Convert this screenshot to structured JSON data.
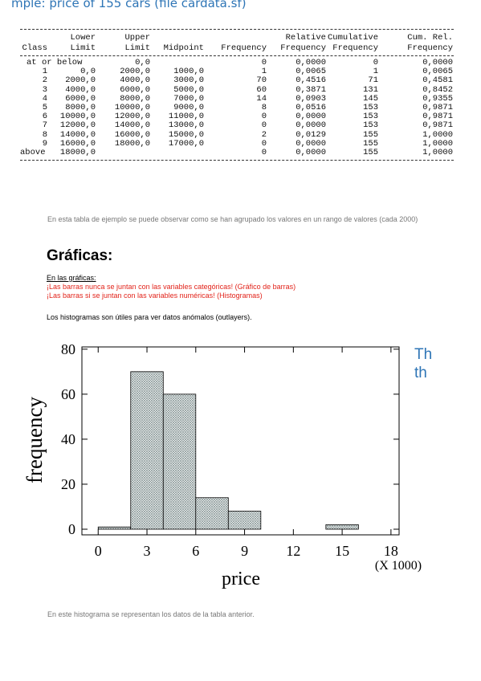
{
  "doc": {
    "top_title": "mple: price of 155 cars (file cardata.sf)",
    "side_text": [
      "Th",
      "th"
    ]
  },
  "table": {
    "headers": [
      [
        "",
        "Class"
      ],
      [
        "Lower",
        "Limit"
      ],
      [
        "Upper",
        "Limit"
      ],
      [
        "",
        "Midpoint"
      ],
      [
        "",
        "Frequency"
      ],
      [
        "Relative",
        "Frequency"
      ],
      [
        "Cumulative",
        "Frequency"
      ],
      [
        "Cum. Rel.",
        "Frequency"
      ]
    ],
    "rows": [
      [
        "at",
        "or below",
        "0,0",
        "",
        "0",
        "0,0000",
        "0",
        "0,0000"
      ],
      [
        "1",
        "0,0",
        "2000,0",
        "1000,0",
        "1",
        "0,0065",
        "1",
        "0,0065"
      ],
      [
        "2",
        "2000,0",
        "4000,0",
        "3000,0",
        "70",
        "0,4516",
        "71",
        "0,4581"
      ],
      [
        "3",
        "4000,0",
        "6000,0",
        "5000,0",
        "60",
        "0,3871",
        "131",
        "0,8452"
      ],
      [
        "4",
        "6000,0",
        "8000,0",
        "7000,0",
        "14",
        "0,0903",
        "145",
        "0,9355"
      ],
      [
        "5",
        "8000,0",
        "10000,0",
        "9000,0",
        "8",
        "0,0516",
        "153",
        "0,9871"
      ],
      [
        "6",
        "10000,0",
        "12000,0",
        "11000,0",
        "0",
        "0,0000",
        "153",
        "0,9871"
      ],
      [
        "7",
        "12000,0",
        "14000,0",
        "13000,0",
        "0",
        "0,0000",
        "153",
        "0,9871"
      ],
      [
        "8",
        "14000,0",
        "16000,0",
        "15000,0",
        "2",
        "0,0129",
        "155",
        "1,0000"
      ],
      [
        "9",
        "16000,0",
        "18000,0",
        "17000,0",
        "0",
        "0,0000",
        "155",
        "1,0000"
      ],
      [
        "above",
        "18000,0",
        "",
        "",
        "0",
        "0,0000",
        "155",
        "1,0000"
      ]
    ]
  },
  "text": {
    "caption1": "En esta tabla de ejemplo se puede observar como se han agrupado los valores en un rango de valores (cada 2000)",
    "section_title": "Gráficas:",
    "note_heading": "En las gráficas:",
    "note_line1": "¡Las barras nunca se juntan con las variables categóricas! (Gráfico de barras)",
    "note_line2": "¡Las barras si se juntan con las variables numéricas! (Histogramas)",
    "histogram_note": "Los histogramas son útiles para ver datos anómalos (outlayers).",
    "caption2": "En este histograma se representan los datos de la tabla anterior."
  },
  "colors": {
    "accent_blue": "#2e75b6",
    "note_red": "#e2231a",
    "bar_hatch": "#8a9a9a"
  },
  "chart_data": {
    "type": "bar",
    "bin_edges": [
      0,
      2,
      4,
      6,
      8,
      10,
      12,
      14,
      16,
      18
    ],
    "values": [
      1,
      70,
      60,
      14,
      8,
      0,
      0,
      2,
      0
    ],
    "xlabel": "price",
    "ylabel": "frequency",
    "x_unit_label": "(X 1000)",
    "xticks": [
      0,
      3,
      6,
      9,
      12,
      15,
      18
    ],
    "yticks": [
      0,
      20,
      40,
      60,
      80
    ],
    "xlim": [
      -1,
      18.5
    ],
    "ylim": [
      -2.5,
      81
    ],
    "grid": false
  }
}
